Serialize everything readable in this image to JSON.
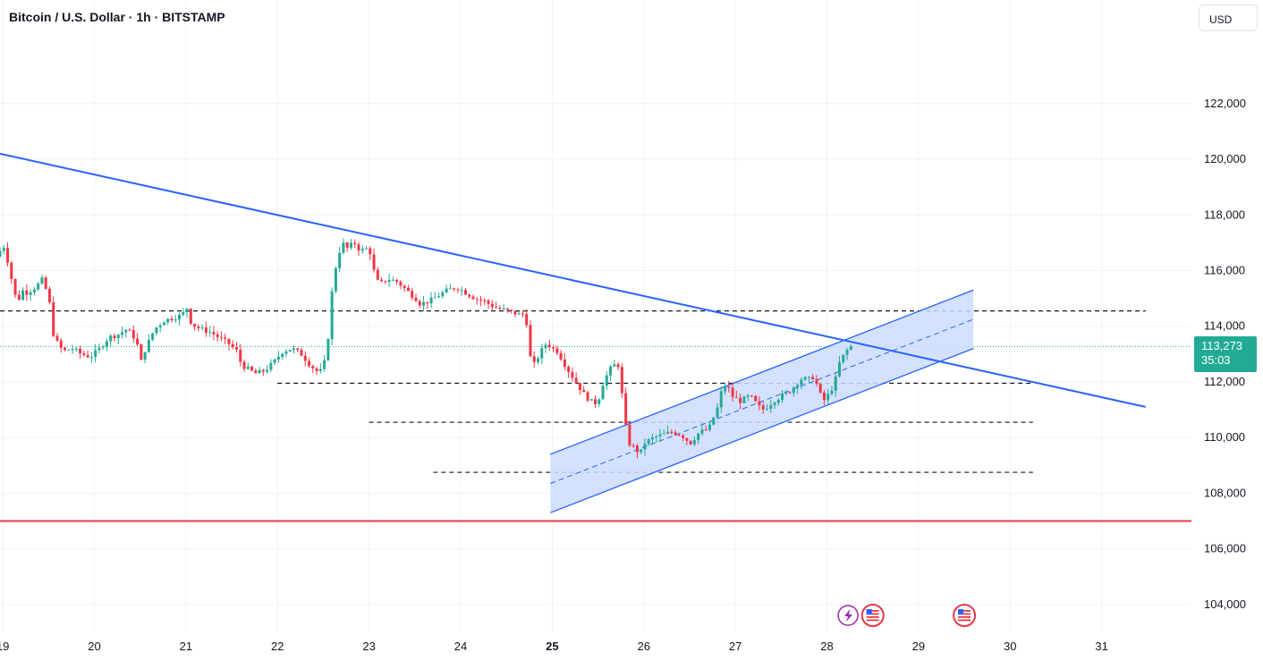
{
  "header": {
    "title": "Bitcoin / U.S. Dollar · 1h · BITSTAMP",
    "currency_label": "USD"
  },
  "price_badge": {
    "price": "113,273",
    "countdown": "35:03",
    "color": "#22ab94"
  },
  "colors": {
    "up": "#22ab94",
    "down": "#f23645",
    "trendline": "#2962ff",
    "support_line": "#e53946",
    "channel_fill": "#cddcfe"
  },
  "chart_data": {
    "type": "candlestick",
    "title": "Bitcoin / U.S. Dollar · 1h · BITSTAMP",
    "y_axis": {
      "ticks": [
        "104,000",
        "106,000",
        "108,000",
        "110,000",
        "112,000",
        "114,000",
        "116,000",
        "118,000",
        "120,000",
        "122,000"
      ],
      "tick_values": [
        104000,
        106000,
        108000,
        110000,
        112000,
        114000,
        116000,
        118000,
        120000,
        122000
      ],
      "range": [
        103000,
        124500
      ]
    },
    "x_axis": {
      "labels": [
        "19",
        "20",
        "21",
        "22",
        "23",
        "24",
        "25",
        "26",
        "27",
        "28",
        "29",
        "30",
        "31"
      ],
      "bold_label": "25",
      "range_days": [
        18.97,
        31.98
      ]
    },
    "last_price": 113273,
    "price_path": [
      [
        18.97,
        116500
      ],
      [
        19.05,
        116900
      ],
      [
        19.1,
        116300
      ],
      [
        19.15,
        115500
      ],
      [
        19.2,
        114800
      ],
      [
        19.25,
        115300
      ],
      [
        19.3,
        115200
      ],
      [
        19.4,
        115400
      ],
      [
        19.48,
        115700
      ],
      [
        19.55,
        114900
      ],
      [
        19.6,
        113600
      ],
      [
        19.7,
        113100
      ],
      [
        19.8,
        113200
      ],
      [
        19.9,
        113000
      ],
      [
        20.0,
        112900
      ],
      [
        20.1,
        113200
      ],
      [
        20.2,
        113600
      ],
      [
        20.3,
        113700
      ],
      [
        20.4,
        113900
      ],
      [
        20.5,
        113500
      ],
      [
        20.55,
        112700
      ],
      [
        20.6,
        113200
      ],
      [
        20.7,
        113900
      ],
      [
        20.8,
        114200
      ],
      [
        20.9,
        114300
      ],
      [
        21.0,
        114400
      ],
      [
        21.05,
        114700
      ],
      [
        21.1,
        114100
      ],
      [
        21.2,
        113900
      ],
      [
        21.3,
        113800
      ],
      [
        21.4,
        113600
      ],
      [
        21.5,
        113400
      ],
      [
        21.6,
        113100
      ],
      [
        21.65,
        112600
      ],
      [
        21.7,
        112500
      ],
      [
        21.8,
        112300
      ],
      [
        21.9,
        112400
      ],
      [
        22.0,
        112700
      ],
      [
        22.1,
        113100
      ],
      [
        22.2,
        113200
      ],
      [
        22.3,
        113000
      ],
      [
        22.4,
        112600
      ],
      [
        22.5,
        112300
      ],
      [
        22.58,
        112900
      ],
      [
        22.62,
        114800
      ],
      [
        22.66,
        115800
      ],
      [
        22.7,
        116500
      ],
      [
        22.75,
        117000
      ],
      [
        22.8,
        116800
      ],
      [
        22.88,
        117000
      ],
      [
        22.95,
        116700
      ],
      [
        23.0,
        116800
      ],
      [
        23.05,
        116700
      ],
      [
        23.1,
        115900
      ],
      [
        23.15,
        115500
      ],
      [
        23.25,
        115700
      ],
      [
        23.35,
        115600
      ],
      [
        23.45,
        115300
      ],
      [
        23.55,
        115000
      ],
      [
        23.6,
        114800
      ],
      [
        23.7,
        114900
      ],
      [
        23.8,
        115100
      ],
      [
        23.9,
        115300
      ],
      [
        24.0,
        115400
      ],
      [
        24.05,
        115300
      ],
      [
        24.1,
        115200
      ],
      [
        24.2,
        115000
      ],
      [
        24.3,
        114900
      ],
      [
        24.4,
        114700
      ],
      [
        24.5,
        114600
      ],
      [
        24.6,
        114500
      ],
      [
        24.7,
        114400
      ],
      [
        24.75,
        114500
      ],
      [
        24.8,
        112900
      ],
      [
        24.85,
        112600
      ],
      [
        24.9,
        113000
      ],
      [
        24.98,
        113400
      ],
      [
        25.05,
        113200
      ],
      [
        25.1,
        113100
      ],
      [
        25.2,
        112500
      ],
      [
        25.3,
        112000
      ],
      [
        25.4,
        111500
      ],
      [
        25.5,
        111200
      ],
      [
        25.55,
        111400
      ],
      [
        25.6,
        112000
      ],
      [
        25.7,
        112600
      ],
      [
        25.78,
        112600
      ],
      [
        25.82,
        110800
      ],
      [
        25.88,
        109800
      ],
      [
        25.95,
        109600
      ],
      [
        26.0,
        109400
      ],
      [
        26.05,
        109800
      ],
      [
        26.15,
        110000
      ],
      [
        26.25,
        110100
      ],
      [
        26.35,
        110200
      ],
      [
        26.45,
        110100
      ],
      [
        26.55,
        109800
      ],
      [
        26.65,
        110200
      ],
      [
        26.75,
        110300
      ],
      [
        26.85,
        111100
      ],
      [
        26.9,
        111800
      ],
      [
        26.95,
        111900
      ],
      [
        27.0,
        111500
      ],
      [
        27.1,
        111300
      ],
      [
        27.2,
        111500
      ],
      [
        27.3,
        111100
      ],
      [
        27.35,
        111000
      ],
      [
        27.45,
        111300
      ],
      [
        27.55,
        111500
      ],
      [
        27.65,
        111700
      ],
      [
        27.75,
        112100
      ],
      [
        27.85,
        112100
      ],
      [
        27.9,
        112200
      ],
      [
        27.95,
        111700
      ],
      [
        28.0,
        111300
      ],
      [
        28.05,
        111500
      ],
      [
        28.12,
        111900
      ],
      [
        28.18,
        112700
      ],
      [
        28.25,
        113100
      ],
      [
        28.3,
        113273
      ]
    ],
    "trendline": {
      "from": [
        18.97,
        120200
      ],
      "to": [
        31.48,
        111100
      ]
    },
    "support_line": {
      "value": 107000
    },
    "dotted_last_price_line": {
      "value": 113273
    },
    "horizontal_levels": [
      {
        "value": 114550,
        "x_start": 18.97,
        "x_end": 31.48
      },
      {
        "value": 111950,
        "x_start": 22.0,
        "x_end": 30.25
      },
      {
        "value": 110550,
        "x_start": 23.0,
        "x_end": 30.25
      },
      {
        "value": 108750,
        "x_start": 23.7,
        "x_end": 30.25
      }
    ],
    "channel": {
      "upper": [
        [
          24.98,
          109400
        ],
        [
          29.6,
          115300
        ]
      ],
      "lower": [
        [
          24.98,
          107300
        ],
        [
          29.6,
          113200
        ]
      ],
      "middle": [
        [
          24.98,
          108350
        ],
        [
          29.6,
          114250
        ]
      ]
    },
    "event_markers": [
      {
        "day": 28.23,
        "icon": "lightning-icon"
      },
      {
        "day": 28.5,
        "icon": "us-flag-icon"
      },
      {
        "day": 29.5,
        "icon": "us-flag-icon"
      }
    ]
  }
}
